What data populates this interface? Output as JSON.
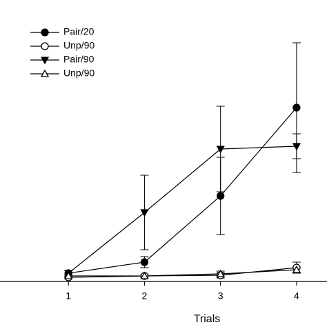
{
  "chart_data": {
    "type": "line",
    "x_label": "Trials",
    "x": [
      1,
      2,
      3,
      4
    ],
    "xlim": [
      0.1,
      4.4
    ],
    "xticks": [
      1,
      2,
      3,
      4
    ],
    "ylim": [
      0,
      100
    ],
    "legend": "upper left",
    "series": [
      {
        "name": "Pair/20",
        "color": "#000000",
        "marker": "circle",
        "filled": true,
        "values": [
          3,
          7,
          31,
          63
        ],
        "errors": [
          1,
          2,
          14,
          23.5
        ]
      },
      {
        "name": "Unp/90",
        "color": "#000000",
        "marker": "circle",
        "filled": false,
        "values": [
          1.5,
          2,
          2.25,
          5
        ],
        "errors": [
          0.5,
          0.5,
          1,
          2
        ]
      },
      {
        "name": "Pair/90",
        "color": "#000000",
        "marker": "triangle-down",
        "filled": true,
        "values": [
          3,
          25,
          48,
          49
        ],
        "errors": [
          1,
          13.5,
          15.5,
          4.5
        ]
      },
      {
        "name": "Unp/90",
        "color": "#000000",
        "marker": "triangle-up",
        "filled": false,
        "values": [
          2,
          2,
          2.75,
          4.25
        ],
        "errors": [
          0.5,
          0.5,
          1,
          1
        ]
      }
    ]
  }
}
